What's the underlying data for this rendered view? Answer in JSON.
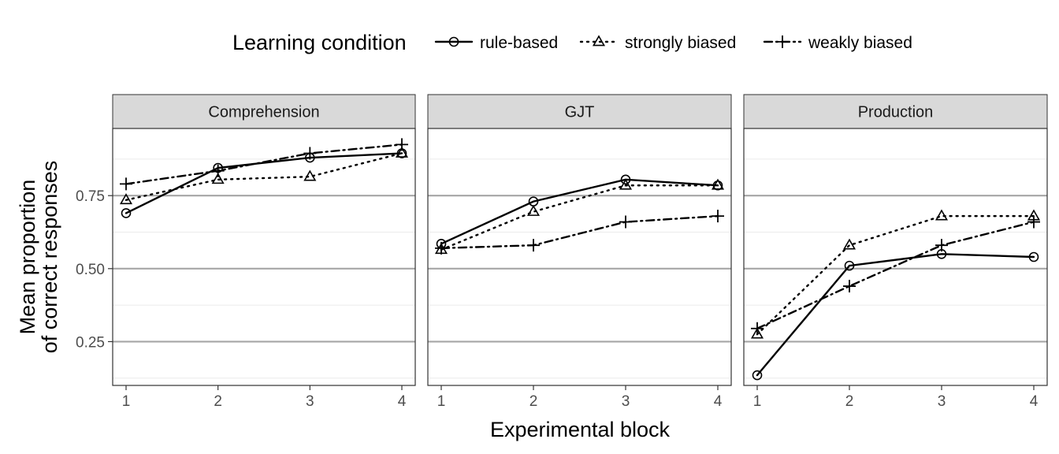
{
  "chart_data": {
    "type": "line",
    "facets": [
      "Comprehension",
      "GJT",
      "Production"
    ],
    "x": [
      1,
      2,
      3,
      4
    ],
    "xlabel": "Experimental block",
    "ylabel_lines": [
      "Mean proportion",
      "of correct responses"
    ],
    "ylim": [
      0.1,
      0.98
    ],
    "yticks": [
      0.25,
      0.5,
      0.75
    ],
    "ytick_labels": [
      "0.25",
      "0.50",
      "0.75"
    ],
    "xticks": [
      1,
      2,
      3,
      4
    ],
    "xtick_labels": [
      "1",
      "2",
      "3",
      "4"
    ],
    "grid": true,
    "legend": {
      "title": "Learning condition",
      "position": "top",
      "entries": [
        "rule-based",
        "strongly biased",
        "weakly biased"
      ]
    },
    "series": [
      {
        "name": "rule-based",
        "marker": "circle",
        "linestyle": "solid",
        "values": {
          "Comprehension": [
            0.69,
            0.845,
            0.88,
            0.895
          ],
          "GJT": [
            0.585,
            0.73,
            0.805,
            0.785
          ],
          "Production": [
            0.135,
            0.51,
            0.55,
            0.54
          ]
        }
      },
      {
        "name": "strongly biased",
        "marker": "triangle",
        "linestyle": "dotted",
        "values": {
          "Comprehension": [
            0.735,
            0.805,
            0.815,
            0.895
          ],
          "GJT": [
            0.565,
            0.695,
            0.785,
            0.785
          ],
          "Production": [
            0.275,
            0.58,
            0.68,
            0.68
          ]
        }
      },
      {
        "name": "weakly biased",
        "marker": "plus",
        "linestyle": "dashdot",
        "values": {
          "Comprehension": [
            0.79,
            0.835,
            0.895,
            0.925
          ],
          "GJT": [
            0.57,
            0.58,
            0.66,
            0.68
          ],
          "Production": [
            0.295,
            0.44,
            0.58,
            0.66
          ]
        }
      }
    ]
  }
}
